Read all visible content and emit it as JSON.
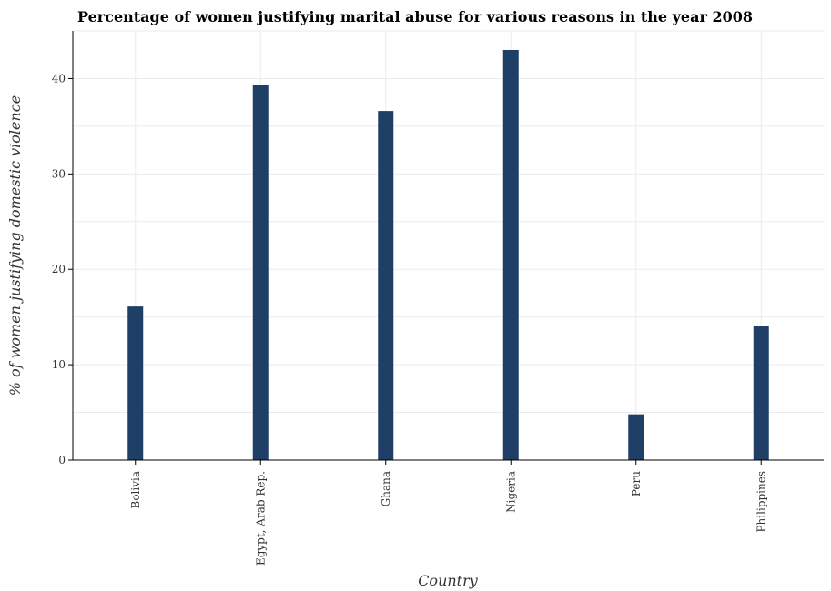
{
  "chart_data": {
    "type": "bar",
    "title": "Percentage of women justifying marital abuse for various reasons in the year 2008",
    "xlabel": "Country",
    "ylabel": "% of women justifying domestic violence",
    "categories": [
      "Bolivia",
      "Egypt, Arab Rep.",
      "Ghana",
      "Nigeria",
      "Peru",
      "Philippines"
    ],
    "values": [
      16.1,
      39.3,
      36.6,
      43.0,
      4.8,
      14.1
    ],
    "ylim": [
      0,
      45
    ],
    "yticks": [
      0,
      10,
      20,
      30,
      40
    ],
    "grid": true,
    "bar_color": "#1f3f66"
  }
}
